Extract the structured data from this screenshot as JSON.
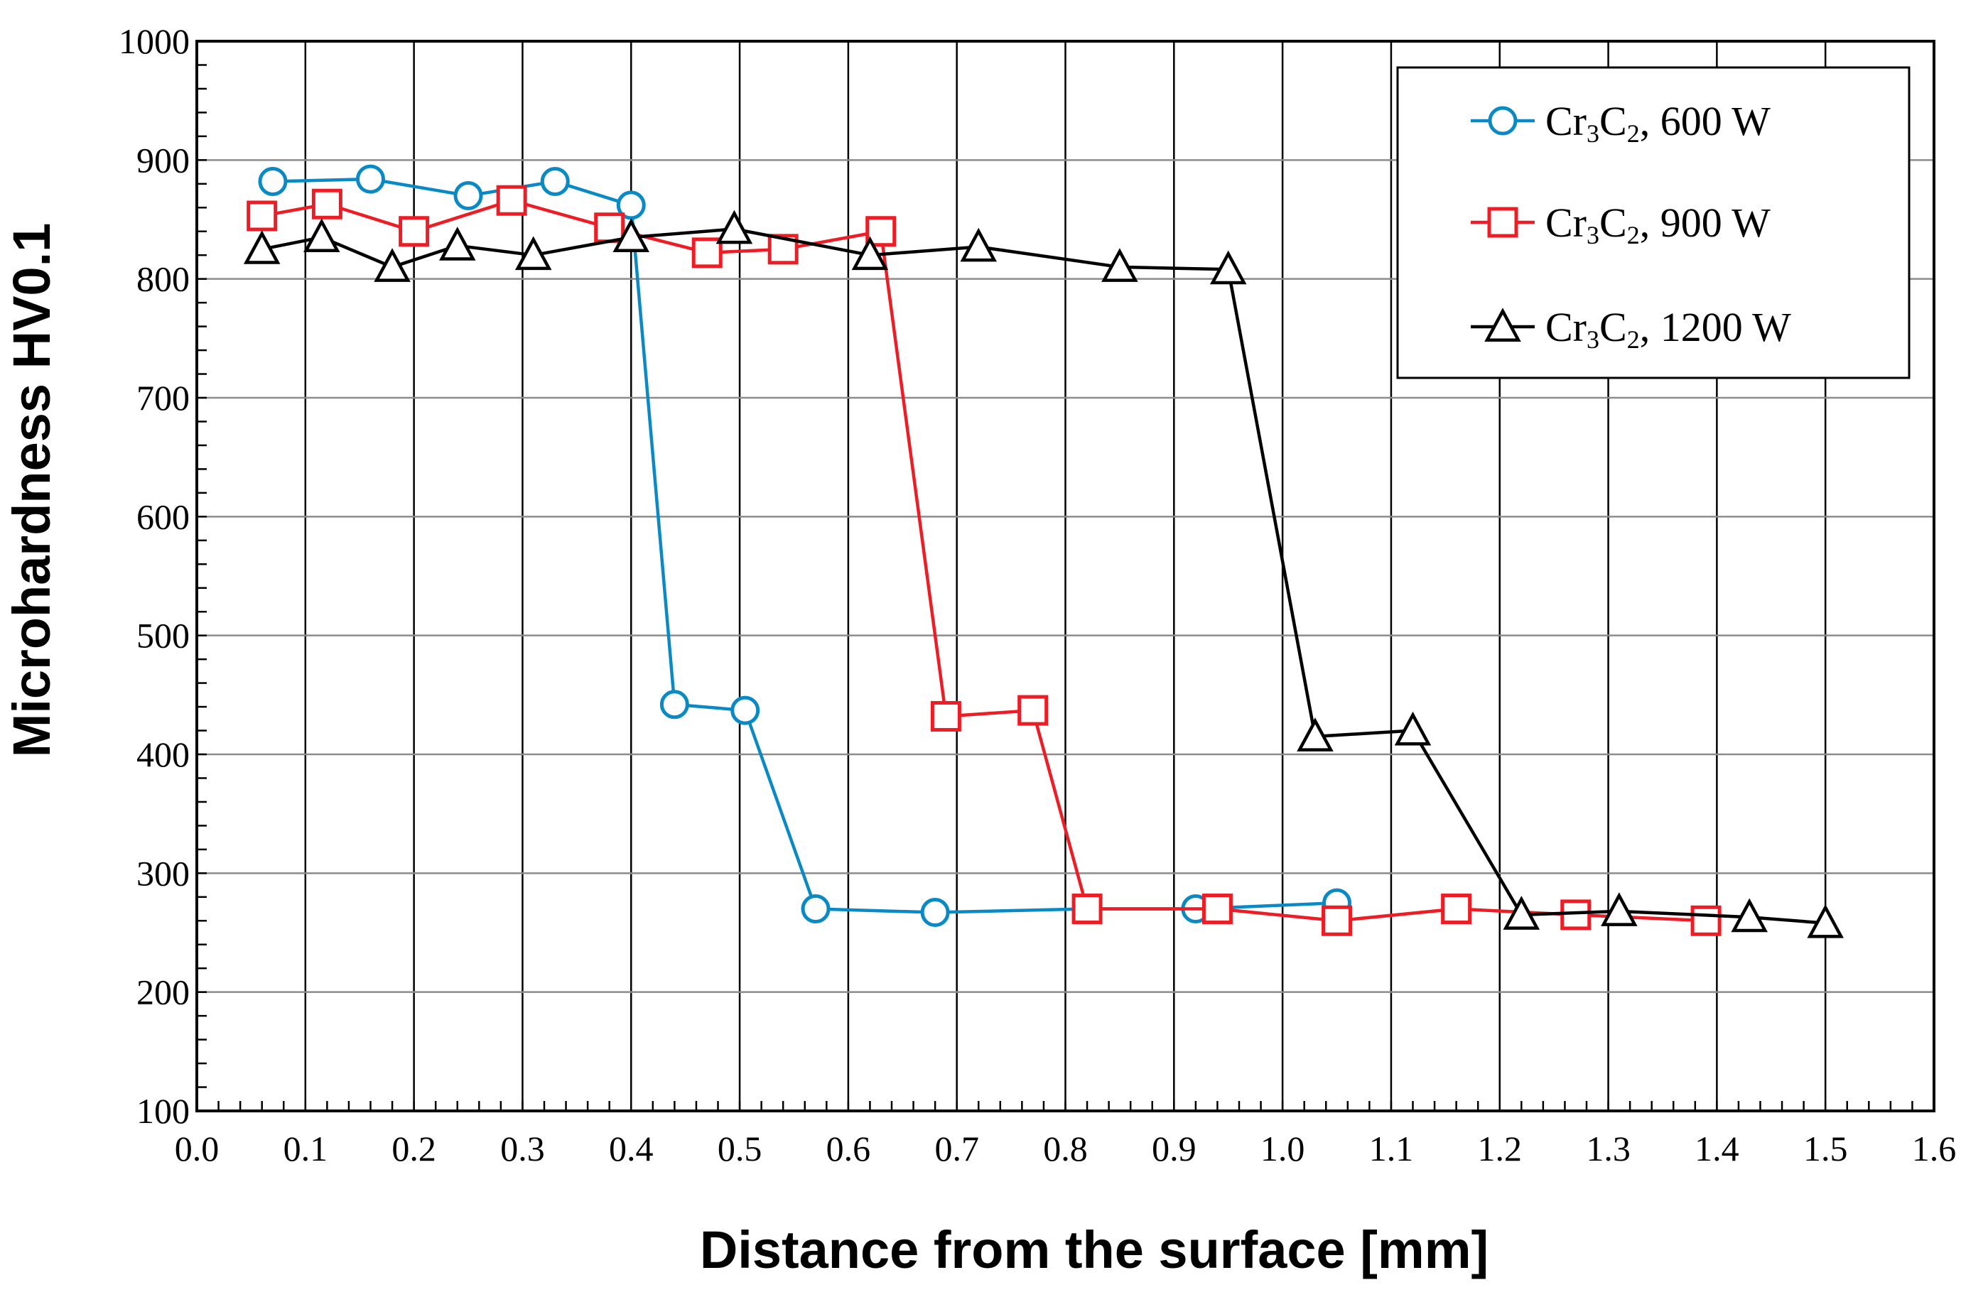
{
  "chart_data": {
    "type": "line",
    "title": "",
    "xlabel": "Distance from the surface [mm]",
    "ylabel": "Microhardness HV0.1",
    "xlim": [
      0.0,
      1.6
    ],
    "ylim": [
      100,
      1000
    ],
    "x_ticks": [
      0.0,
      0.1,
      0.2,
      0.3,
      0.4,
      0.5,
      0.6,
      0.7,
      0.8,
      0.9,
      1.0,
      1.1,
      1.2,
      1.3,
      1.4,
      1.5,
      1.6
    ],
    "x_tick_labels": [
      "0.0",
      "0.1",
      "0.2",
      "0.3",
      "0.4",
      "0.5",
      "0.6",
      "0.7",
      "0.8",
      "0.9",
      "1.0",
      "1.1",
      "1.2",
      "1.3",
      "1.4",
      "1.5",
      "1.6"
    ],
    "y_ticks": [
      100,
      200,
      300,
      400,
      500,
      600,
      700,
      800,
      900,
      1000
    ],
    "y_tick_labels": [
      "100",
      "200",
      "300",
      "400",
      "500",
      "600",
      "700",
      "800",
      "900",
      "1000"
    ],
    "x_minor_step": 0.02,
    "y_minor_step": 20,
    "grid": true,
    "legend_position": "top-right",
    "series": [
      {
        "name": "Cr3C2, 600 W",
        "legend": {
          "base": "Cr",
          "sub1": "3",
          "mid": "C",
          "sub2": "2",
          "rest": ", 600 W"
        },
        "color": "#0a8ac4",
        "marker": "circle",
        "x": [
          0.07,
          0.16,
          0.25,
          0.33,
          0.4,
          0.44,
          0.505,
          0.57,
          0.68,
          0.82,
          0.92,
          1.05
        ],
        "y": [
          882,
          884,
          870,
          882,
          862,
          442,
          437,
          270,
          267,
          270,
          270,
          275
        ]
      },
      {
        "name": "Cr3C2, 900 W",
        "legend": {
          "base": "Cr",
          "sub1": "3",
          "mid": "C",
          "sub2": "2",
          "rest": ", 900 W"
        },
        "color": "#ee1c24",
        "marker": "square",
        "x": [
          0.06,
          0.12,
          0.2,
          0.29,
          0.38,
          0.47,
          0.54,
          0.63,
          0.69,
          0.77,
          0.82,
          0.94,
          1.05,
          1.16,
          1.27,
          1.39
        ],
        "y": [
          853,
          863,
          840,
          866,
          843,
          822,
          825,
          840,
          432,
          437,
          270,
          270,
          260,
          270,
          265,
          260
        ]
      },
      {
        "name": "Cr3C2, 1200 W",
        "legend": {
          "base": "Cr",
          "sub1": "3",
          "mid": "C",
          "sub2": "2",
          "rest": ", 1200 W"
        },
        "color": "#000000",
        "marker": "triangle",
        "x": [
          0.06,
          0.115,
          0.18,
          0.24,
          0.31,
          0.4,
          0.495,
          0.62,
          0.72,
          0.85,
          0.95,
          1.03,
          1.12,
          1.22,
          1.31,
          1.43,
          1.5
        ],
        "y": [
          825,
          835,
          810,
          828,
          820,
          835,
          842,
          820,
          827,
          810,
          808,
          415,
          420,
          265,
          268,
          263,
          258
        ]
      }
    ]
  }
}
